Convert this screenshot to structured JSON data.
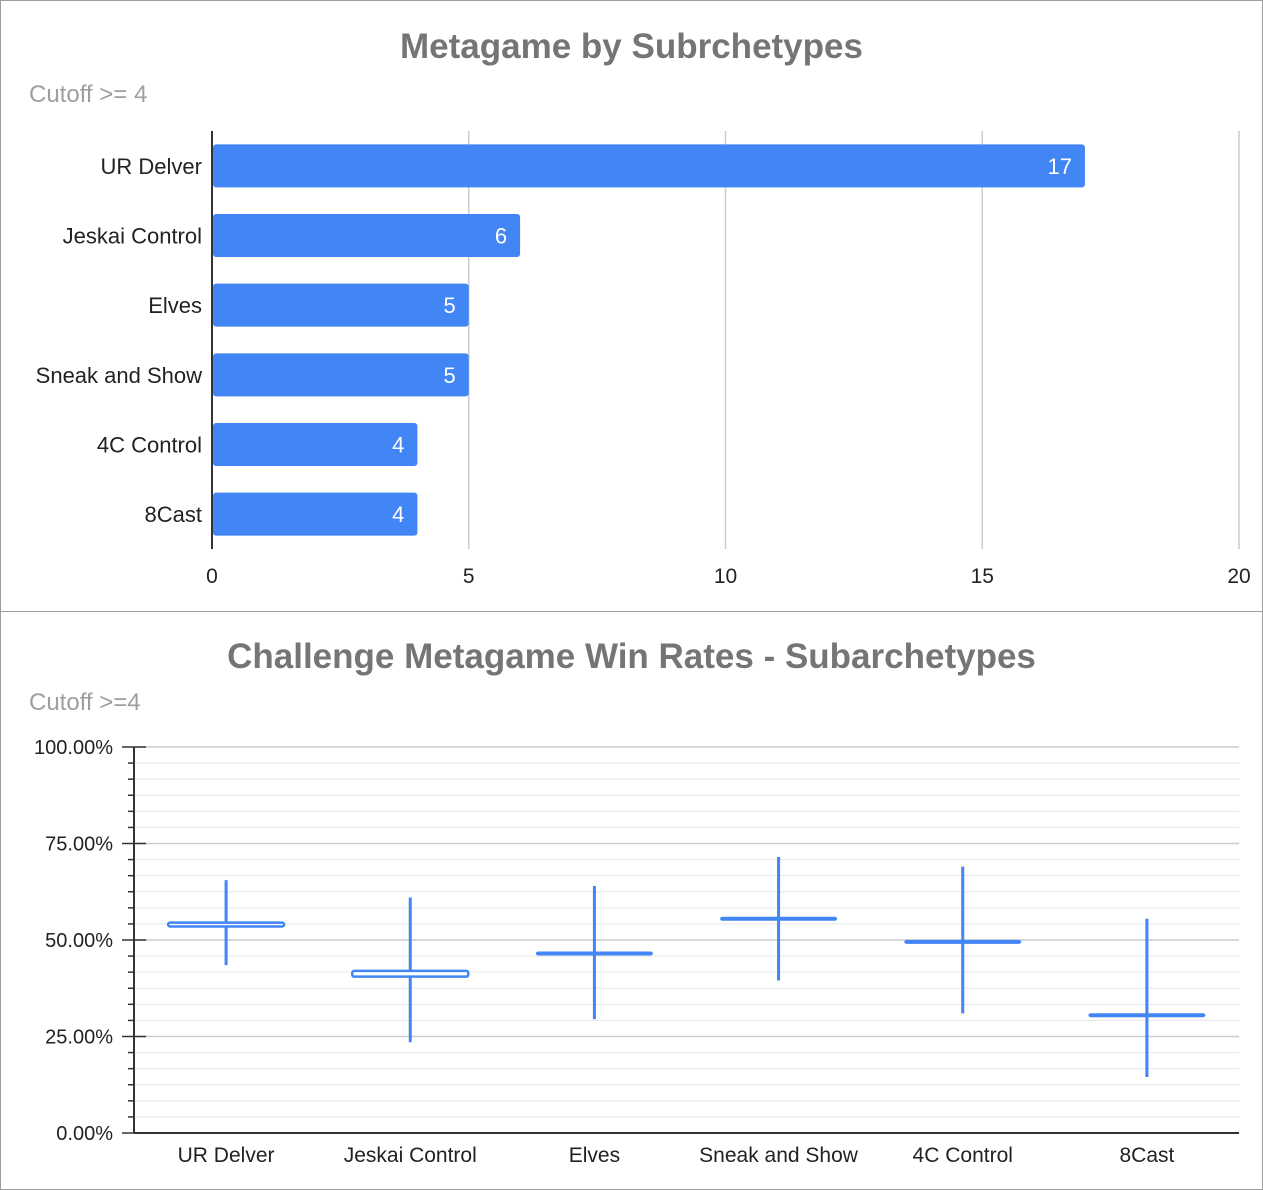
{
  "chart_data": [
    {
      "type": "bar",
      "orientation": "horizontal",
      "title": "Metagame by Subrchetypes",
      "subtitle": "Cutoff >= 4",
      "categories": [
        "UR Delver",
        "Jeskai Control",
        "Elves",
        "Sneak and Show",
        "4C Control",
        "8Cast"
      ],
      "values": [
        17,
        6,
        5,
        5,
        4,
        4
      ],
      "xlim": [
        0,
        20
      ],
      "xticks": [
        "0",
        "5",
        "10",
        "15",
        "20"
      ],
      "grid": true,
      "data_labels": true,
      "color": "#4285f4"
    },
    {
      "type": "candlestick",
      "title": "Challenge Metagame Win Rates - Subarchetypes",
      "subtitle": "Cutoff >=4",
      "categories": [
        "UR Delver",
        "Jeskai Control",
        "Elves",
        "Sneak and Show",
        "4C Control",
        "8Cast"
      ],
      "low": [
        43.5,
        23.5,
        29.5,
        39.5,
        31.0,
        14.5
      ],
      "open": [
        53.5,
        40.5,
        46.5,
        55.5,
        49.5,
        30.5
      ],
      "close": [
        54.5,
        42.0,
        46.5,
        55.5,
        49.5,
        30.5
      ],
      "high": [
        65.5,
        61.0,
        64.0,
        71.5,
        69.0,
        55.5
      ],
      "ylim": [
        0,
        100
      ],
      "yticks": [
        "0.00%",
        "25.00%",
        "50.00%",
        "75.00%",
        "100.00%"
      ],
      "grid": true,
      "color": "#4285f4"
    }
  ]
}
